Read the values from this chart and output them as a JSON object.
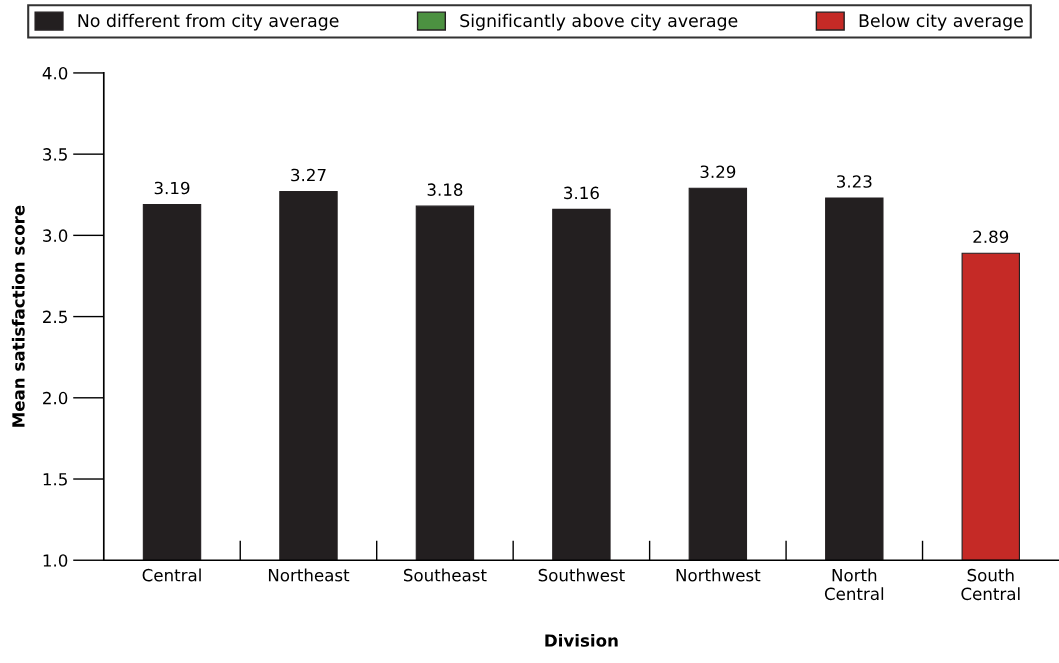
{
  "chart_data": {
    "type": "bar",
    "xlabel": "Division",
    "ylabel": "Mean satisfaction score",
    "categories": [
      "Central",
      "Northeast",
      "Southeast",
      "Southwest",
      "Northwest",
      "North Central",
      "South Central"
    ],
    "series": [
      {
        "name": "No different from city average",
        "color": "#231f20",
        "values": [
          3.19,
          3.27,
          3.18,
          3.16,
          3.29,
          3.23,
          null
        ]
      },
      {
        "name": "Significantly above city average",
        "color": "#4c9141",
        "values": [
          null,
          null,
          null,
          null,
          null,
          null,
          null
        ]
      },
      {
        "name": "Below city average",
        "color": "#c52a26",
        "values": [
          null,
          null,
          null,
          null,
          null,
          null,
          2.89
        ]
      }
    ],
    "stacked": true,
    "data_labels": true,
    "ylim": [
      1.0,
      4.0
    ],
    "yticks": [
      "1.0",
      "1.5",
      "2.0",
      "2.5",
      "3.0",
      "3.5",
      "4.0"
    ],
    "grid": false,
    "legend": "top"
  }
}
